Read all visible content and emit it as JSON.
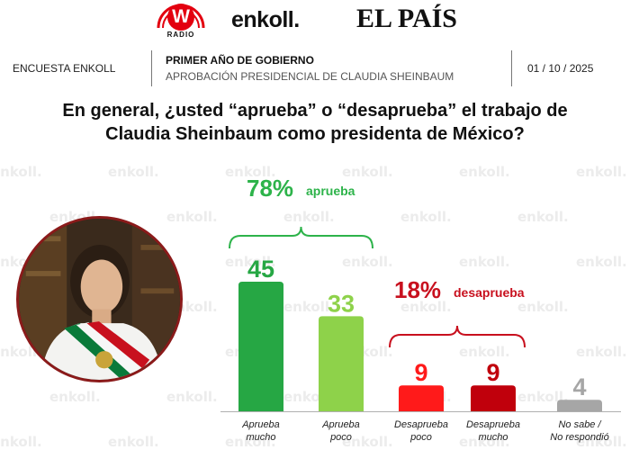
{
  "logos": {
    "w_letter": "W",
    "w_sub": "RADIO",
    "enkoll": "enkoll.",
    "el_pais": "EL PAÍS",
    "watermark": "enkoll."
  },
  "header": {
    "left": "ENCUESTA ENKOLL",
    "title": "PRIMER AÑO DE GOBIERNO",
    "subtitle": "APROBACIÓN PRESIDENCIAL DE CLAUDIA SHEINBAUM",
    "date": "01 / 10 / 2025"
  },
  "question": "En general, ¿usted “aprueba” o “desaprueba” el trabajo de Claudia Sheinbaum como presidenta de México?",
  "colors": {
    "approve_strong": "#26a744",
    "approve_weak": "#8ed24a",
    "disapprove_mid": "#ff1a1a",
    "disapprove_strong": "#c0000c",
    "no_answer": "#a6a6a6",
    "approve_group": "#2db34a",
    "disapprove_group": "#c8101e"
  },
  "chart_data": {
    "type": "bar",
    "title": "",
    "categories": [
      "Aprueba mucho",
      "Aprueba poco",
      "Desaprueba poco",
      "Desaprueba mucho",
      "No sabe / No respondió"
    ],
    "category_lines": [
      [
        "Aprueba",
        "mucho"
      ],
      [
        "Aprueba",
        "poco"
      ],
      [
        "Desaprueba",
        "poco"
      ],
      [
        "Desaprueba",
        "mucho"
      ],
      [
        "No sabe /",
        "No respondió"
      ]
    ],
    "values": [
      45,
      33,
      9,
      9,
      4
    ],
    "value_labels": [
      "45",
      "33",
      "9",
      "9",
      "4"
    ],
    "bar_colors": [
      "#26a744",
      "#8ed24a",
      "#ff1a1a",
      "#c0000c",
      "#a6a6a6"
    ],
    "groups": [
      {
        "pct": "78%",
        "word": "aprueba",
        "bars": [
          0,
          1
        ],
        "color": "#2db34a"
      },
      {
        "pct": "18%",
        "word": "desaprueba",
        "bars": [
          2,
          3
        ],
        "color": "#c8101e"
      }
    ],
    "ylim": [
      0,
      50
    ],
    "grid": false,
    "legend": "none",
    "xlabel": "",
    "ylabel": ""
  }
}
